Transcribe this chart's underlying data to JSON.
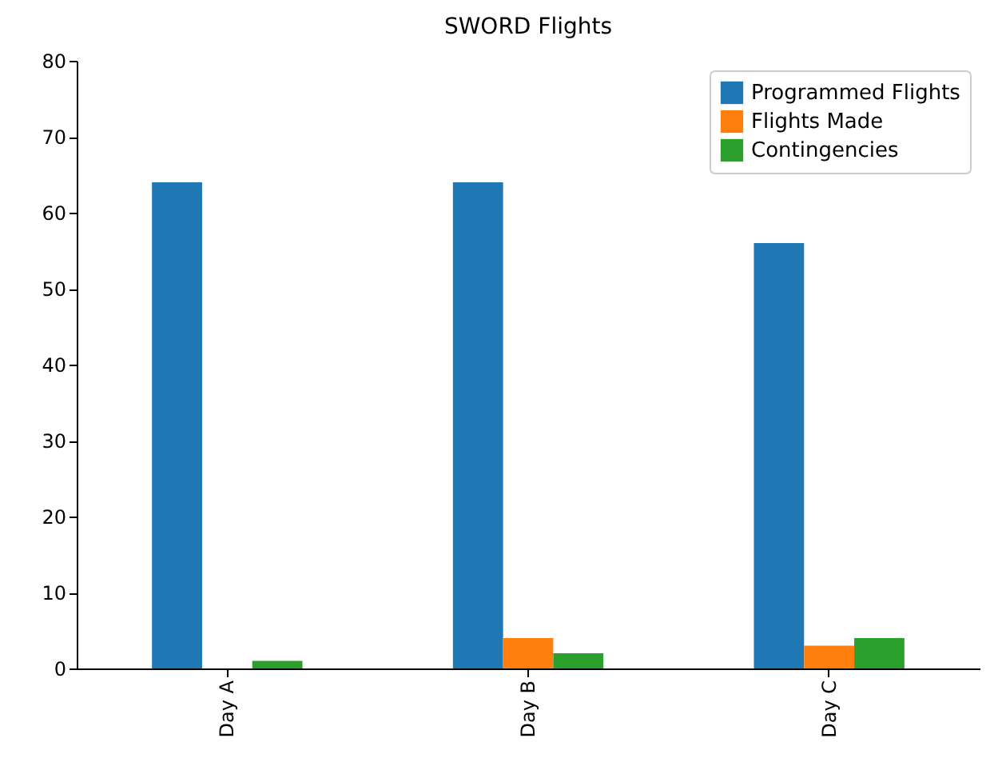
{
  "chart_data": {
    "type": "bar",
    "title": "SWORD Flights",
    "categories": [
      "Day A",
      "Day B",
      "Day C"
    ],
    "series": [
      {
        "name": "Programmed Flights",
        "color": "#1f77b4",
        "values": [
          64,
          64,
          56
        ]
      },
      {
        "name": "Flights Made",
        "color": "#ff7f0e",
        "values": [
          0,
          4,
          3
        ]
      },
      {
        "name": "Contingencies",
        "color": "#2ca02c",
        "values": [
          1,
          2,
          4
        ]
      }
    ],
    "ylim": [
      0,
      80
    ],
    "yticks": [
      0,
      10,
      20,
      30,
      40,
      50,
      60,
      70,
      80
    ],
    "grid": false,
    "legend": "top right"
  }
}
